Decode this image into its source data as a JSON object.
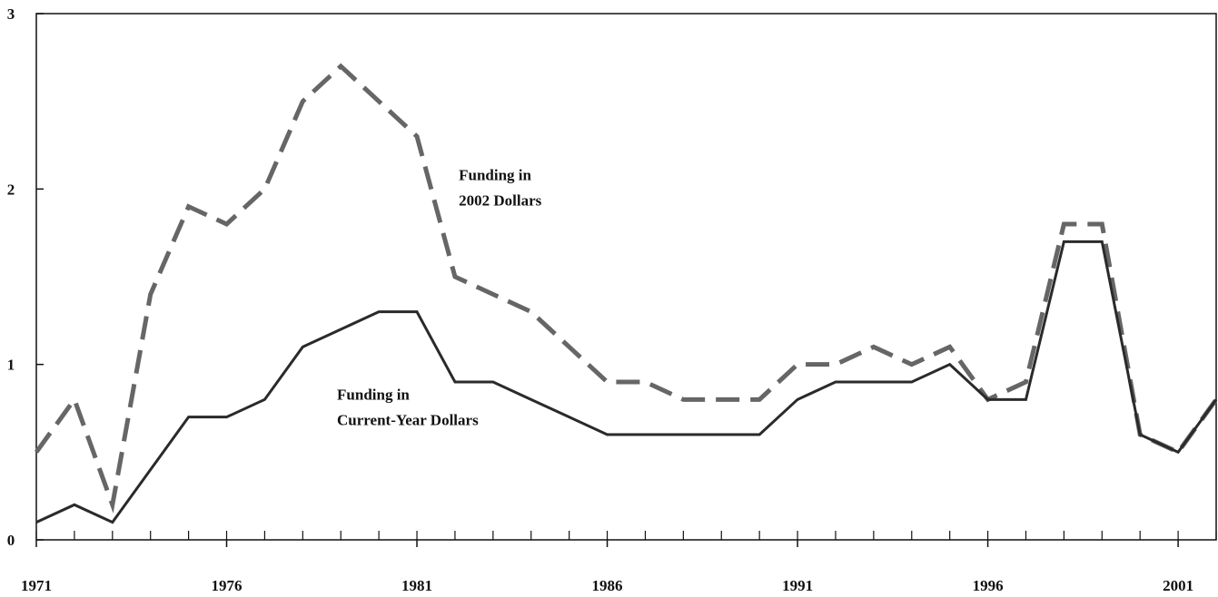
{
  "chart_data": {
    "type": "line",
    "x": [
      1971,
      1972,
      1973,
      1974,
      1975,
      1976,
      1977,
      1978,
      1979,
      1980,
      1981,
      1982,
      1983,
      1984,
      1985,
      1986,
      1987,
      1988,
      1989,
      1990,
      1991,
      1992,
      1993,
      1994,
      1995,
      1996,
      1997,
      1998,
      1999,
      2000,
      2001,
      2002
    ],
    "series": [
      {
        "color": "#666666",
        "dashed": true,
        "values": [
          0.5,
          0.8,
          0.2,
          1.4,
          1.9,
          1.8,
          2.0,
          2.5,
          2.7,
          2.5,
          2.3,
          1.5,
          1.4,
          1.3,
          1.1,
          0.9,
          0.9,
          0.8,
          0.8,
          0.8,
          1.0,
          1.0,
          1.1,
          1.0,
          1.1,
          0.8,
          0.9,
          1.8,
          1.8,
          0.6,
          0.5,
          0.8
        ]
      },
      {
        "color": "#2a2a2a",
        "dashed": false,
        "values": [
          0.1,
          0.2,
          0.1,
          0.4,
          0.7,
          0.7,
          0.8,
          1.1,
          1.2,
          1.3,
          1.3,
          0.9,
          0.9,
          0.8,
          0.7,
          0.6,
          0.6,
          0.6,
          0.6,
          0.6,
          0.8,
          0.9,
          0.9,
          0.9,
          1.0,
          0.8,
          0.8,
          1.7,
          1.7,
          0.6,
          0.5,
          0.8
        ]
      }
    ],
    "annotations": [
      {
        "lines": [
          "Funding in",
          "2002 Dollars"
        ],
        "x": 1982.1,
        "y": 2.05
      },
      {
        "lines": [
          "Funding in",
          "Current-Year Dollars"
        ],
        "x": 1978.9,
        "y": 0.8
      }
    ],
    "xlim": [
      1971,
      2002
    ],
    "xticks": [
      1971,
      1976,
      1981,
      1986,
      1991,
      1996,
      2001
    ],
    "ylim": [
      0,
      3
    ],
    "yticks": [
      0,
      1,
      2,
      3
    ]
  }
}
